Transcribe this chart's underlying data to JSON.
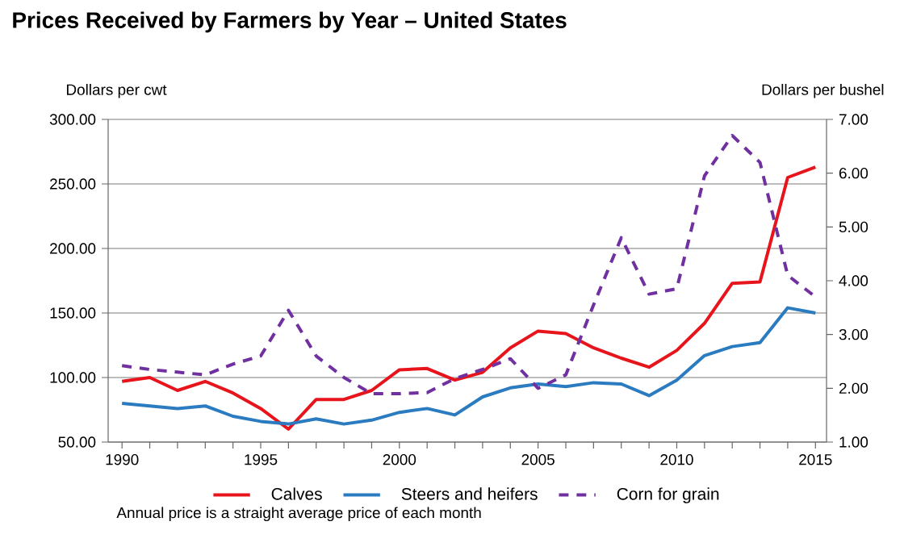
{
  "chart_data": {
    "type": "line",
    "title": "Prices Received by Farmers by Year – United States",
    "ylabel": "Dollars per cwt",
    "y2label": "Dollars per bushel",
    "x": [
      1990,
      1991,
      1992,
      1993,
      1994,
      1995,
      1996,
      1997,
      1998,
      1999,
      2000,
      2001,
      2002,
      2003,
      2004,
      2005,
      2006,
      2007,
      2008,
      2009,
      2010,
      2011,
      2012,
      2013,
      2014,
      2015
    ],
    "series": [
      {
        "name": "Calves",
        "color": "#e8141c",
        "values": [
          97,
          100,
          90,
          97,
          88,
          76,
          60,
          83,
          83,
          90,
          106,
          107,
          98,
          104,
          123,
          136,
          134,
          123,
          115,
          108,
          121,
          142,
          173,
          174,
          255,
          263
        ]
      },
      {
        "name": "Steers and heifers",
        "color": "#2a7bc0",
        "values": [
          80,
          78,
          76,
          78,
          70,
          66,
          64,
          68,
          64,
          67,
          73,
          76,
          71,
          85,
          92,
          95,
          93,
          96,
          95,
          86,
          98,
          117,
          124,
          127,
          154,
          150
        ]
      },
      {
        "name": "Corn for grain",
        "color": "#7030a0",
        "axis": "y2",
        "line_style": "dashed",
        "values": [
          2.42,
          2.35,
          2.3,
          2.25,
          2.45,
          2.6,
          3.45,
          2.6,
          2.2,
          1.9,
          1.9,
          1.92,
          2.18,
          2.35,
          2.55,
          2.0,
          2.25,
          3.55,
          4.8,
          3.75,
          3.85,
          5.95,
          6.7,
          6.2,
          4.1,
          3.7
        ]
      }
    ],
    "xlim": [
      1989.5,
      2015.4
    ],
    "xticks": [
      1990,
      {
        "value": 1991,
        "label": null
      },
      {
        "value": 1992,
        "label": null
      },
      {
        "value": 1993,
        "label": null
      },
      {
        "value": 1994,
        "label": null
      },
      1995,
      {
        "value": 1996,
        "label": null
      },
      {
        "value": 1997,
        "label": null
      },
      {
        "value": 1998,
        "label": null
      },
      {
        "value": 1999,
        "label": null
      },
      2000,
      {
        "value": 2001,
        "label": null
      },
      {
        "value": 2002,
        "label": null
      },
      {
        "value": 2003,
        "label": null
      },
      {
        "value": 2004,
        "label": null
      },
      2005,
      {
        "value": 2006,
        "label": null
      },
      {
        "value": 2007,
        "label": null
      },
      {
        "value": 2008,
        "label": null
      },
      {
        "value": 2009,
        "label": null
      },
      2010,
      {
        "value": 2011,
        "label": null
      },
      {
        "value": 2012,
        "label": null
      },
      {
        "value": 2013,
        "label": null
      },
      {
        "value": 2014,
        "label": null
      },
      2015
    ],
    "ylim": [
      50,
      300
    ],
    "yticks": [
      {
        "value": 50,
        "label": "50.00"
      },
      {
        "value": 100,
        "label": "100.00"
      },
      {
        "value": 150,
        "label": "150.00"
      },
      {
        "value": 200,
        "label": "200.00"
      },
      {
        "value": 250,
        "label": "250.00"
      },
      {
        "value": 300,
        "label": "300.00"
      }
    ],
    "y2lim": [
      1,
      7
    ],
    "y2ticks": [
      {
        "value": 1,
        "label": "1.00"
      },
      {
        "value": 2,
        "label": "2.00"
      },
      {
        "value": 3,
        "label": "3.00"
      },
      {
        "value": 4,
        "label": "4.00"
      },
      {
        "value": 5,
        "label": "5.00"
      },
      {
        "value": 6,
        "label": "6.00"
      },
      {
        "value": 7,
        "label": "7.00"
      }
    ],
    "grid": "y",
    "legend": "bottom",
    "annotations": [
      "Annual price is a straight average price of each month"
    ]
  }
}
